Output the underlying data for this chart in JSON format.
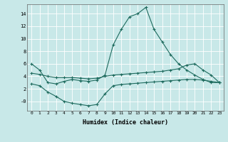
{
  "xlabel": "Humidex (Indice chaleur)",
  "xlim": [
    -0.5,
    23.5
  ],
  "ylim": [
    -1.5,
    15.5
  ],
  "xticks": [
    0,
    1,
    2,
    3,
    4,
    5,
    6,
    7,
    8,
    9,
    10,
    11,
    12,
    13,
    14,
    15,
    16,
    17,
    18,
    19,
    20,
    21,
    22,
    23
  ],
  "yticks": [
    0,
    2,
    4,
    6,
    8,
    10,
    12,
    14
  ],
  "ytick_labels": [
    "-0",
    "2",
    "4",
    "6",
    "8",
    "10",
    "12",
    "14"
  ],
  "line_color": "#1E6B5E",
  "bg_color": "#C8E8E8",
  "grid_color": "#FFFFFF",
  "line1_x": [
    0,
    1,
    2,
    3,
    4,
    5,
    6,
    7,
    8,
    9,
    10,
    11,
    12,
    13,
    14,
    15,
    16,
    17,
    18,
    19,
    20,
    21,
    22,
    23
  ],
  "line1_y": [
    6.0,
    5.0,
    3.0,
    2.8,
    3.2,
    3.5,
    3.3,
    3.2,
    3.4,
    4.2,
    9.0,
    11.5,
    13.5,
    14.0,
    15.0,
    11.5,
    9.5,
    7.5,
    6.0,
    5.0,
    4.2,
    3.5,
    3.0,
    3.0
  ],
  "line2_x": [
    0,
    1,
    2,
    3,
    4,
    5,
    6,
    7,
    8,
    9,
    10,
    11,
    12,
    13,
    14,
    15,
    16,
    17,
    18,
    19,
    20,
    21,
    22,
    23
  ],
  "line2_y": [
    4.5,
    4.3,
    4.0,
    3.8,
    3.8,
    3.8,
    3.7,
    3.6,
    3.7,
    4.0,
    4.2,
    4.3,
    4.4,
    4.5,
    4.6,
    4.7,
    4.8,
    5.0,
    5.2,
    5.8,
    6.0,
    5.0,
    4.2,
    3.0
  ],
  "line3_x": [
    0,
    1,
    2,
    3,
    4,
    5,
    6,
    7,
    8,
    9,
    10,
    11,
    12,
    13,
    14,
    15,
    16,
    17,
    18,
    19,
    20,
    21,
    22,
    23
  ],
  "line3_y": [
    2.8,
    2.5,
    1.5,
    0.8,
    0.0,
    -0.3,
    -0.5,
    -0.7,
    -0.5,
    1.2,
    2.5,
    2.7,
    2.8,
    2.9,
    3.0,
    3.1,
    3.2,
    3.3,
    3.4,
    3.5,
    3.5,
    3.4,
    3.2,
    3.0
  ]
}
